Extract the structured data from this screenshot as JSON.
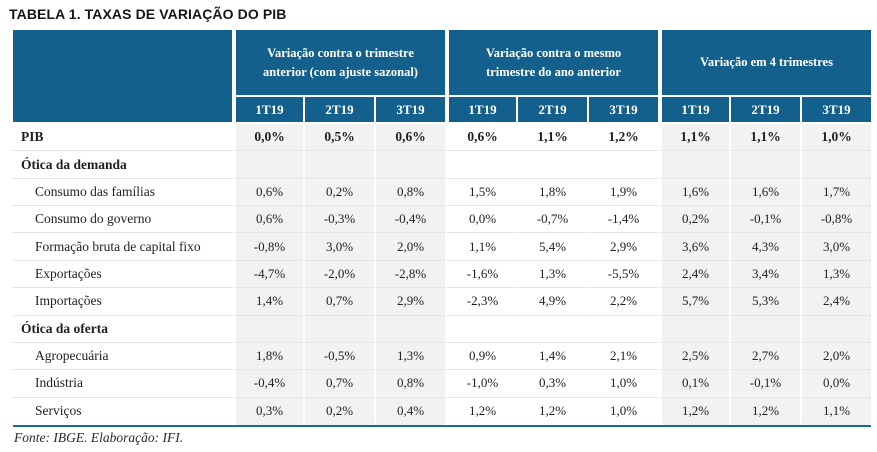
{
  "title": "TABELA 1. TAXAS DE VARIAÇÃO DO PIB",
  "source_note": "Fonte: IBGE. Elaboração: IFI.",
  "colors": {
    "header_bg": "#14608c",
    "stripe_bg": "#f2f2f2",
    "bottom_rule": "#1a6b96"
  },
  "table": {
    "column_groups": [
      {
        "label": "Variação contra o trimestre anterior (com ajuste sazonal)",
        "striped": true
      },
      {
        "label": "Variação contra o mesmo trimestre do ano anterior",
        "striped": false
      },
      {
        "label": "Variação em 4 trimestres",
        "striped": true
      }
    ],
    "quarter_headers": [
      "1T19",
      "2T19",
      "3T19"
    ],
    "rows": [
      {
        "label": "PIB",
        "type": "total",
        "values": [
          "0,0%",
          "0,5%",
          "0,6%",
          "0,6%",
          "1,1%",
          "1,2%",
          "1,1%",
          "1,1%",
          "1,0%"
        ]
      },
      {
        "label": "Ótica da demanda",
        "type": "section",
        "values": [
          "",
          "",
          "",
          "",
          "",
          "",
          "",
          "",
          ""
        ]
      },
      {
        "label": "Consumo das famílias",
        "type": "data",
        "values": [
          "0,6%",
          "0,2%",
          "0,8%",
          "1,5%",
          "1,8%",
          "1,9%",
          "1,6%",
          "1,6%",
          "1,7%"
        ]
      },
      {
        "label": "Consumo do governo",
        "type": "data",
        "values": [
          "0,6%",
          "-0,3%",
          "-0,4%",
          "0,0%",
          "-0,7%",
          "-1,4%",
          "0,2%",
          "-0,1%",
          "-0,8%"
        ]
      },
      {
        "label": "Formação bruta de capital fixo",
        "type": "data",
        "values": [
          "-0,8%",
          "3,0%",
          "2,0%",
          "1,1%",
          "5,4%",
          "2,9%",
          "3,6%",
          "4,3%",
          "3,0%"
        ]
      },
      {
        "label": "Exportações",
        "type": "data",
        "values": [
          "-4,7%",
          "-2,0%",
          "-2,8%",
          "-1,6%",
          "1,3%",
          "-5,5%",
          "2,4%",
          "3,4%",
          "1,3%"
        ]
      },
      {
        "label": "Importações",
        "type": "data",
        "values": [
          "1,4%",
          "0,7%",
          "2,9%",
          "-2,3%",
          "4,9%",
          "2,2%",
          "5,7%",
          "5,3%",
          "2,4%"
        ]
      },
      {
        "label": "Ótica da oferta",
        "type": "section",
        "values": [
          "",
          "",
          "",
          "",
          "",
          "",
          "",
          "",
          ""
        ]
      },
      {
        "label": "Agropecuária",
        "type": "data",
        "values": [
          "1,8%",
          "-0,5%",
          "1,3%",
          "0,9%",
          "1,4%",
          "2,1%",
          "2,5%",
          "2,7%",
          "2,0%"
        ]
      },
      {
        "label": "Indústria",
        "type": "data",
        "values": [
          "-0,4%",
          "0,7%",
          "0,8%",
          "-1,0%",
          "0,3%",
          "1,0%",
          "0,1%",
          "-0,1%",
          "0,0%"
        ]
      },
      {
        "label": "Serviços",
        "type": "data",
        "values": [
          "0,3%",
          "0,2%",
          "0,4%",
          "1,2%",
          "1,2%",
          "1,0%",
          "1,2%",
          "1,2%",
          "1,1%"
        ]
      }
    ]
  }
}
